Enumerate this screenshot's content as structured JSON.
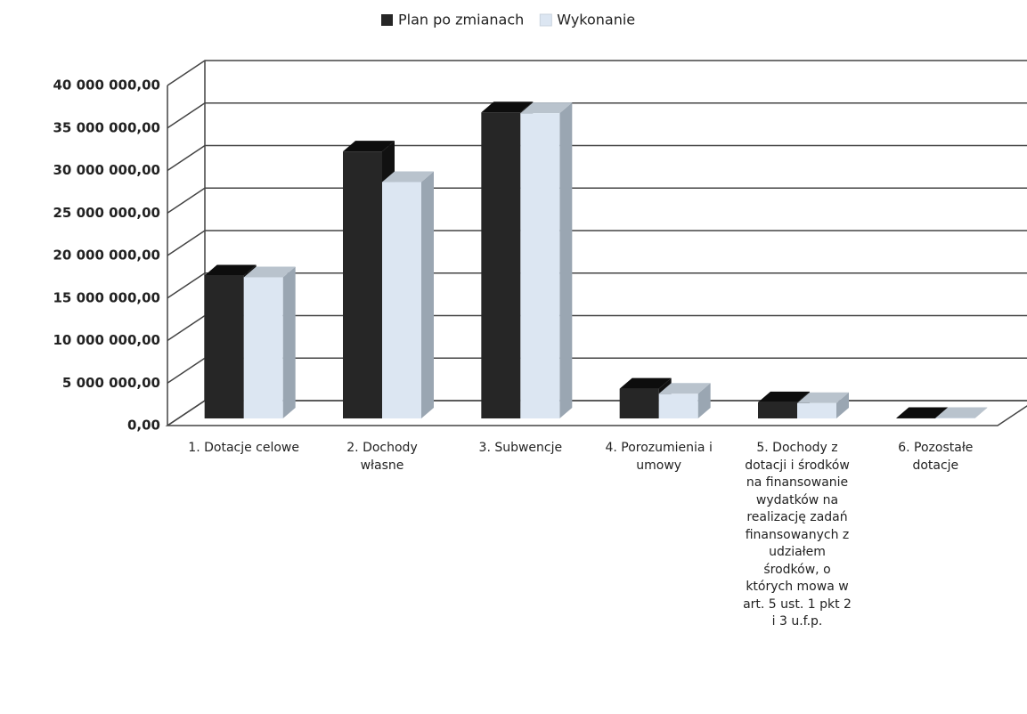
{
  "chart_data": {
    "type": "bar3d",
    "categories": [
      "1. Dotacje celowe",
      "2. Dochody własne",
      "3. Subwencje",
      "4. Porozumienia i umowy",
      "5. Dochody z dotacji i środków  na finansowanie wydatków na realizację zadań finansowanych z udziałem środków, o których mowa w art. 5 ust. 1 pkt  2 i 3 u.f.p.",
      "6. Pozostałe dotacje"
    ],
    "series": [
      {
        "name": "Plan po zmianach",
        "color": "#262626",
        "values": [
          16800000,
          31400000,
          36000000,
          3500000,
          1900000,
          50000
        ]
      },
      {
        "name": "Wykonanie",
        "color": "#dce6f2",
        "values": [
          16600000,
          27800000,
          35900000,
          2900000,
          1800000,
          50000
        ]
      }
    ],
    "ylim": [
      0,
      40000000
    ],
    "yticks": [
      {
        "value": 0,
        "label": "0,00"
      },
      {
        "value": 5000000,
        "label": "5 000 000,00"
      },
      {
        "value": 10000000,
        "label": "10 000 000,00"
      },
      {
        "value": 15000000,
        "label": "15 000 000,00"
      },
      {
        "value": 20000000,
        "label": "20 000 000,00"
      },
      {
        "value": 25000000,
        "label": "25 000 000,00"
      },
      {
        "value": 30000000,
        "label": "30 000 000,00"
      },
      {
        "value": 35000000,
        "label": "35 000 000,00"
      },
      {
        "value": 40000000,
        "label": "40 000 000,00"
      }
    ],
    "grid": true,
    "legend": "top"
  }
}
